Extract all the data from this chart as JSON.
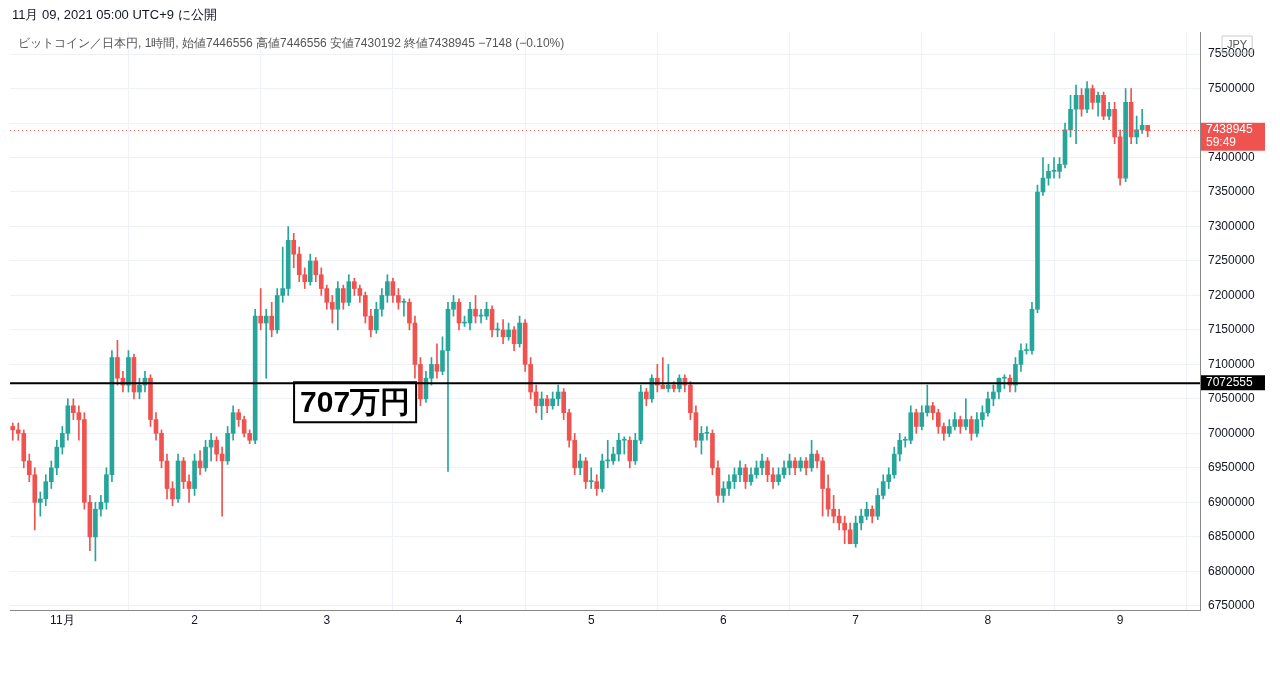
{
  "chart_data": {
    "type": "candlestick",
    "title": "11月 09, 2021 05:00 UTC+9 に公開",
    "subtitle": "ビットコイン／日本円, 1時間, 始値7446556 高値7446556 安値7430192 終値7438945 −7148 (−0.10%)",
    "ylabel": "JPY",
    "x": [
      "2021-10-31T15:00",
      "2021-10-31T16:00",
      "2021-10-31T17:00",
      "2021-10-31T18:00",
      "2021-10-31T19:00",
      "2021-10-31T20:00",
      "2021-10-31T21:00",
      "2021-10-31T22:00",
      "2021-10-31T23:00",
      "2021-11-01T00:00",
      "2021-11-01T01:00",
      "2021-11-01T02:00",
      "2021-11-01T03:00",
      "2021-11-01T04:00",
      "2021-11-01T05:00",
      "2021-11-01T06:00",
      "2021-11-01T07:00",
      "2021-11-01T08:00",
      "2021-11-01T09:00",
      "2021-11-01T10:00",
      "2021-11-01T11:00",
      "2021-11-01T12:00",
      "2021-11-01T13:00",
      "2021-11-01T14:00",
      "2021-11-01T15:00",
      "2021-11-01T16:00",
      "2021-11-01T17:00",
      "2021-11-01T18:00",
      "2021-11-01T19:00",
      "2021-11-01T20:00",
      "2021-11-01T21:00",
      "2021-11-01T22:00",
      "2021-11-01T23:00",
      "2021-11-02T00:00",
      "2021-11-02T01:00",
      "2021-11-02T02:00",
      "2021-11-02T03:00",
      "2021-11-02T04:00",
      "2021-11-02T05:00",
      "2021-11-02T06:00",
      "2021-11-02T07:00",
      "2021-11-02T08:00",
      "2021-11-02T09:00",
      "2021-11-02T10:00",
      "2021-11-02T11:00",
      "2021-11-02T12:00",
      "2021-11-02T13:00",
      "2021-11-02T14:00",
      "2021-11-02T15:00",
      "2021-11-02T16:00",
      "2021-11-02T17:00",
      "2021-11-02T18:00",
      "2021-11-02T19:00",
      "2021-11-02T20:00",
      "2021-11-02T21:00",
      "2021-11-02T22:00",
      "2021-11-02T23:00",
      "2021-11-03T00:00",
      "2021-11-03T01:00",
      "2021-11-03T02:00",
      "2021-11-03T03:00",
      "2021-11-03T04:00",
      "2021-11-03T05:00",
      "2021-11-03T06:00",
      "2021-11-03T07:00",
      "2021-11-03T08:00",
      "2021-11-03T09:00",
      "2021-11-03T10:00",
      "2021-11-03T11:00",
      "2021-11-03T12:00",
      "2021-11-03T13:00",
      "2021-11-03T14:00",
      "2021-11-03T15:00",
      "2021-11-03T16:00",
      "2021-11-03T17:00",
      "2021-11-03T18:00",
      "2021-11-03T19:00",
      "2021-11-03T20:00",
      "2021-11-03T21:00",
      "2021-11-03T22:00",
      "2021-11-03T23:00",
      "2021-11-04T00:00",
      "2021-11-04T01:00",
      "2021-11-04T02:00",
      "2021-11-04T03:00",
      "2021-11-04T04:00",
      "2021-11-04T05:00",
      "2021-11-04T06:00",
      "2021-11-04T07:00",
      "2021-11-04T08:00",
      "2021-11-04T09:00",
      "2021-11-04T10:00",
      "2021-11-04T11:00",
      "2021-11-04T12:00",
      "2021-11-04T13:00",
      "2021-11-04T14:00",
      "2021-11-04T15:00",
      "2021-11-04T16:00",
      "2021-11-04T17:00",
      "2021-11-04T18:00",
      "2021-11-04T19:00",
      "2021-11-04T20:00",
      "2021-11-04T21:00",
      "2021-11-04T22:00",
      "2021-11-04T23:00",
      "2021-11-05T00:00",
      "2021-11-05T01:00",
      "2021-11-05T02:00",
      "2021-11-05T03:00",
      "2021-11-05T04:00",
      "2021-11-05T05:00",
      "2021-11-05T06:00",
      "2021-11-05T07:00",
      "2021-11-05T08:00",
      "2021-11-05T09:00",
      "2021-11-05T10:00",
      "2021-11-05T11:00",
      "2021-11-05T12:00",
      "2021-11-05T13:00",
      "2021-11-05T14:00",
      "2021-11-05T15:00",
      "2021-11-05T16:00",
      "2021-11-05T17:00",
      "2021-11-05T18:00",
      "2021-11-05T19:00",
      "2021-11-05T20:00",
      "2021-11-05T21:00",
      "2021-11-05T22:00",
      "2021-11-05T23:00",
      "2021-11-06T00:00",
      "2021-11-06T01:00",
      "2021-11-06T02:00",
      "2021-11-06T03:00",
      "2021-11-06T04:00",
      "2021-11-06T05:00",
      "2021-11-06T06:00",
      "2021-11-06T07:00",
      "2021-11-06T08:00",
      "2021-11-06T09:00",
      "2021-11-06T10:00",
      "2021-11-06T11:00",
      "2021-11-06T12:00",
      "2021-11-06T13:00",
      "2021-11-06T14:00",
      "2021-11-06T15:00",
      "2021-11-06T16:00",
      "2021-11-06T17:00",
      "2021-11-06T18:00",
      "2021-11-06T19:00",
      "2021-11-06T20:00",
      "2021-11-06T21:00",
      "2021-11-06T22:00",
      "2021-11-06T23:00",
      "2021-11-07T00:00",
      "2021-11-07T01:00",
      "2021-11-07T02:00",
      "2021-11-07T03:00",
      "2021-11-07T04:00",
      "2021-11-07T05:00",
      "2021-11-07T06:00",
      "2021-11-07T07:00",
      "2021-11-07T08:00",
      "2021-11-07T09:00",
      "2021-11-07T10:00",
      "2021-11-07T11:00",
      "2021-11-07T12:00",
      "2021-11-07T13:00",
      "2021-11-07T14:00",
      "2021-11-07T15:00",
      "2021-11-07T16:00",
      "2021-11-07T17:00",
      "2021-11-07T18:00",
      "2021-11-07T19:00",
      "2021-11-07T20:00",
      "2021-11-07T21:00",
      "2021-11-07T22:00",
      "2021-11-07T23:00",
      "2021-11-08T00:00",
      "2021-11-08T01:00",
      "2021-11-08T02:00",
      "2021-11-08T03:00",
      "2021-11-08T04:00",
      "2021-11-08T05:00",
      "2021-11-08T06:00",
      "2021-11-08T07:00",
      "2021-11-08T08:00",
      "2021-11-08T09:00",
      "2021-11-08T10:00",
      "2021-11-08T11:00",
      "2021-11-08T12:00",
      "2021-11-08T13:00",
      "2021-11-08T14:00",
      "2021-11-08T15:00",
      "2021-11-08T16:00",
      "2021-11-08T17:00",
      "2021-11-08T18:00",
      "2021-11-08T19:00",
      "2021-11-08T20:00",
      "2021-11-08T21:00",
      "2021-11-08T22:00",
      "2021-11-08T23:00",
      "2021-11-09T00:00",
      "2021-11-09T01:00",
      "2021-11-09T02:00",
      "2021-11-09T03:00",
      "2021-11-09T04:00",
      "2021-11-09T05:00"
    ],
    "ohlc": [
      [
        7010000,
        7015000,
        6990000,
        7005000
      ],
      [
        7005000,
        7015000,
        6990000,
        7000000
      ],
      [
        7000000,
        7005000,
        6950000,
        6960000
      ],
      [
        6960000,
        6970000,
        6930000,
        6940000
      ],
      [
        6940000,
        6950000,
        6860000,
        6900000
      ],
      [
        6900000,
        6915000,
        6880000,
        6905000
      ],
      [
        6905000,
        6940000,
        6895000,
        6930000
      ],
      [
        6930000,
        6960000,
        6920000,
        6950000
      ],
      [
        6950000,
        6990000,
        6940000,
        6980000
      ],
      [
        6980000,
        7010000,
        6970000,
        7000000
      ],
      [
        7000000,
        7050000,
        6990000,
        7040000
      ],
      [
        7040000,
        7050000,
        7020000,
        7030000
      ],
      [
        7030000,
        7040000,
        6990000,
        7020000
      ],
      [
        7020000,
        7030000,
        6890000,
        6900000
      ],
      [
        6900000,
        6910000,
        6830000,
        6850000
      ],
      [
        6850000,
        6900000,
        6815000,
        6890000
      ],
      [
        6890000,
        6910000,
        6880000,
        6900000
      ],
      [
        6900000,
        6950000,
        6890000,
        6940000
      ],
      [
        6940000,
        7120000,
        6930000,
        7110000
      ],
      [
        7110000,
        7135000,
        7070000,
        7080000
      ],
      [
        7080000,
        7090000,
        7060000,
        7070000
      ],
      [
        7070000,
        7120000,
        7060000,
        7110000
      ],
      [
        7110000,
        7115000,
        7050000,
        7060000
      ],
      [
        7060000,
        7080000,
        7050000,
        7070000
      ],
      [
        7070000,
        7090000,
        7060000,
        7080000
      ],
      [
        7080000,
        7085000,
        7010000,
        7020000
      ],
      [
        7020000,
        7030000,
        6990000,
        7000000
      ],
      [
        7000000,
        7005000,
        6950000,
        6960000
      ],
      [
        6960000,
        6970000,
        6905000,
        6920000
      ],
      [
        6920000,
        6930000,
        6895000,
        6905000
      ],
      [
        6905000,
        6970000,
        6900000,
        6960000
      ],
      [
        6960000,
        6965000,
        6920000,
        6930000
      ],
      [
        6930000,
        6940000,
        6900000,
        6920000
      ],
      [
        6920000,
        6970000,
        6910000,
        6960000
      ],
      [
        6960000,
        6975000,
        6940000,
        6950000
      ],
      [
        6950000,
        6990000,
        6945000,
        6980000
      ],
      [
        6980000,
        7000000,
        6960000,
        6990000
      ],
      [
        6990000,
        6995000,
        6960000,
        6970000
      ],
      [
        6970000,
        6980000,
        6880000,
        6960000
      ],
      [
        6960000,
        7010000,
        6955000,
        7000000
      ],
      [
        7000000,
        7040000,
        6990000,
        7030000
      ],
      [
        7030000,
        7035000,
        7010000,
        7020000
      ],
      [
        7020000,
        7025000,
        6995000,
        7000000
      ],
      [
        7000000,
        7005000,
        6985000,
        6990000
      ],
      [
        6990000,
        7180000,
        6985000,
        7170000
      ],
      [
        7170000,
        7210000,
        7150000,
        7160000
      ],
      [
        7160000,
        7180000,
        7080000,
        7170000
      ],
      [
        7170000,
        7190000,
        7140000,
        7150000
      ],
      [
        7150000,
        7210000,
        7145000,
        7200000
      ],
      [
        7200000,
        7270000,
        7190000,
        7210000
      ],
      [
        7210000,
        7300000,
        7200000,
        7280000
      ],
      [
        7280000,
        7290000,
        7240000,
        7260000
      ],
      [
        7260000,
        7270000,
        7220000,
        7230000
      ],
      [
        7230000,
        7240000,
        7210000,
        7220000
      ],
      [
        7220000,
        7260000,
        7215000,
        7250000
      ],
      [
        7250000,
        7255000,
        7220000,
        7230000
      ],
      [
        7230000,
        7240000,
        7200000,
        7210000
      ],
      [
        7210000,
        7215000,
        7180000,
        7190000
      ],
      [
        7190000,
        7200000,
        7160000,
        7180000
      ],
      [
        7180000,
        7220000,
        7150000,
        7210000
      ],
      [
        7210000,
        7215000,
        7180000,
        7190000
      ],
      [
        7190000,
        7230000,
        7185000,
        7220000
      ],
      [
        7220000,
        7225000,
        7200000,
        7210000
      ],
      [
        7210000,
        7215000,
        7190000,
        7200000
      ],
      [
        7200000,
        7205000,
        7160000,
        7170000
      ],
      [
        7170000,
        7180000,
        7140000,
        7150000
      ],
      [
        7150000,
        7190000,
        7145000,
        7180000
      ],
      [
        7180000,
        7210000,
        7170000,
        7200000
      ],
      [
        7200000,
        7230000,
        7190000,
        7220000
      ],
      [
        7220000,
        7225000,
        7190000,
        7200000
      ],
      [
        7200000,
        7210000,
        7180000,
        7190000
      ],
      [
        7190000,
        7195000,
        7170000,
        7190000
      ],
      [
        7190000,
        7195000,
        7150000,
        7160000
      ],
      [
        7160000,
        7170000,
        7080000,
        7100000
      ],
      [
        7100000,
        7110000,
        7040000,
        7050000
      ],
      [
        7050000,
        7090000,
        7045000,
        7080000
      ],
      [
        7080000,
        7110000,
        7070000,
        7100000
      ],
      [
        7100000,
        7130000,
        7080000,
        7090000
      ],
      [
        7090000,
        7140000,
        7085000,
        7120000
      ],
      [
        7120000,
        7190000,
        6945000,
        7180000
      ],
      [
        7180000,
        7200000,
        7170000,
        7190000
      ],
      [
        7190000,
        7195000,
        7150000,
        7160000
      ],
      [
        7160000,
        7170000,
        7155000,
        7160000
      ],
      [
        7160000,
        7190000,
        7150000,
        7180000
      ],
      [
        7180000,
        7200000,
        7160000,
        7170000
      ],
      [
        7170000,
        7180000,
        7160000,
        7170000
      ],
      [
        7170000,
        7190000,
        7165000,
        7180000
      ],
      [
        7180000,
        7185000,
        7140000,
        7150000
      ],
      [
        7150000,
        7160000,
        7140000,
        7150000
      ],
      [
        7150000,
        7165000,
        7130000,
        7140000
      ],
      [
        7140000,
        7160000,
        7135000,
        7150000
      ],
      [
        7150000,
        7155000,
        7120000,
        7130000
      ],
      [
        7130000,
        7170000,
        7125000,
        7160000
      ],
      [
        7160000,
        7165000,
        7090000,
        7100000
      ],
      [
        7100000,
        7110000,
        7050000,
        7060000
      ],
      [
        7060000,
        7070000,
        7030000,
        7040000
      ],
      [
        7040000,
        7060000,
        7020000,
        7050000
      ],
      [
        7050000,
        7055000,
        7030000,
        7040000
      ],
      [
        7040000,
        7060000,
        7035000,
        7050000
      ],
      [
        7050000,
        7070000,
        7040000,
        7060000
      ],
      [
        7060000,
        7065000,
        7020000,
        7030000
      ],
      [
        7030000,
        7035000,
        6980000,
        6990000
      ],
      [
        6990000,
        7000000,
        6940000,
        6950000
      ],
      [
        6950000,
        6970000,
        6940000,
        6960000
      ],
      [
        6960000,
        6965000,
        6920000,
        6930000
      ],
      [
        6930000,
        6950000,
        6920000,
        6930000
      ],
      [
        6930000,
        6940000,
        6910000,
        6920000
      ],
      [
        6920000,
        6970000,
        6915000,
        6960000
      ],
      [
        6960000,
        6990000,
        6950000,
        6960000
      ],
      [
        6960000,
        6980000,
        6955000,
        6970000
      ],
      [
        6970000,
        7000000,
        6960000,
        6990000
      ],
      [
        6990000,
        6995000,
        6970000,
        6990000
      ],
      [
        6990000,
        6995000,
        6950000,
        6960000
      ],
      [
        6960000,
        7000000,
        6955000,
        6990000
      ],
      [
        6990000,
        7070000,
        6985000,
        7060000
      ],
      [
        7060000,
        7065000,
        7040000,
        7050000
      ],
      [
        7050000,
        7085000,
        7045000,
        7080000
      ],
      [
        7080000,
        7100000,
        7060000,
        7070000
      ],
      [
        7070000,
        7110000,
        7065000,
        7065000
      ],
      [
        7065000,
        7100000,
        7060000,
        7070000
      ],
      [
        7070000,
        7075000,
        7060000,
        7065000
      ],
      [
        7065000,
        7085000,
        7060000,
        7080000
      ],
      [
        7080000,
        7085000,
        7060000,
        7070000
      ],
      [
        7070000,
        7075000,
        7020000,
        7030000
      ],
      [
        7030000,
        7040000,
        6980000,
        6990000
      ],
      [
        6990000,
        7010000,
        6970000,
        7000000
      ],
      [
        7000000,
        7010000,
        6990000,
        7000000
      ],
      [
        7000000,
        7005000,
        6940000,
        6950000
      ],
      [
        6950000,
        6960000,
        6900000,
        6910000
      ],
      [
        6910000,
        6930000,
        6900000,
        6920000
      ],
      [
        6920000,
        6940000,
        6910000,
        6930000
      ],
      [
        6930000,
        6950000,
        6920000,
        6940000
      ],
      [
        6940000,
        6960000,
        6930000,
        6950000
      ],
      [
        6950000,
        6955000,
        6920000,
        6930000
      ],
      [
        6930000,
        6950000,
        6925000,
        6940000
      ],
      [
        6940000,
        6960000,
        6935000,
        6950000
      ],
      [
        6950000,
        6970000,
        6940000,
        6960000
      ],
      [
        6960000,
        6965000,
        6930000,
        6940000
      ],
      [
        6940000,
        6950000,
        6920000,
        6930000
      ],
      [
        6930000,
        6950000,
        6925000,
        6940000
      ],
      [
        6940000,
        6960000,
        6935000,
        6950000
      ],
      [
        6950000,
        6970000,
        6940000,
        6960000
      ],
      [
        6960000,
        6965000,
        6940000,
        6950000
      ],
      [
        6950000,
        6965000,
        6945000,
        6960000
      ],
      [
        6960000,
        6965000,
        6940000,
        6950000
      ],
      [
        6950000,
        6990000,
        6945000,
        6970000
      ],
      [
        6970000,
        6975000,
        6950000,
        6960000
      ],
      [
        6960000,
        6965000,
        6880000,
        6920000
      ],
      [
        6920000,
        6940000,
        6880000,
        6890000
      ],
      [
        6890000,
        6910000,
        6870000,
        6880000
      ],
      [
        6880000,
        6890000,
        6860000,
        6870000
      ],
      [
        6870000,
        6880000,
        6840000,
        6860000
      ],
      [
        6860000,
        6870000,
        6840000,
        6840000
      ],
      [
        6840000,
        6880000,
        6835000,
        6870000
      ],
      [
        6870000,
        6890000,
        6860000,
        6880000
      ],
      [
        6880000,
        6900000,
        6875000,
        6890000
      ],
      [
        6890000,
        6895000,
        6870000,
        6880000
      ],
      [
        6880000,
        6920000,
        6875000,
        6910000
      ],
      [
        6910000,
        6940000,
        6905000,
        6930000
      ],
      [
        6930000,
        6950000,
        6920000,
        6940000
      ],
      [
        6940000,
        6980000,
        6935000,
        6970000
      ],
      [
        6970000,
        7000000,
        6960000,
        6990000
      ],
      [
        6990000,
        6995000,
        6980000,
        6990000
      ],
      [
        6990000,
        7040000,
        6985000,
        7030000
      ],
      [
        7030000,
        7035000,
        7000000,
        7010000
      ],
      [
        7010000,
        7040000,
        7005000,
        7030000
      ],
      [
        7030000,
        7070000,
        7025000,
        7040000
      ],
      [
        7040000,
        7045000,
        7020000,
        7030000
      ],
      [
        7030000,
        7035000,
        7000000,
        7010000
      ],
      [
        7010000,
        7015000,
        6990000,
        7000000
      ],
      [
        7000000,
        7020000,
        6995000,
        7010000
      ],
      [
        7010000,
        7030000,
        7005000,
        7020000
      ],
      [
        7020000,
        7025000,
        7000000,
        7010000
      ],
      [
        7010000,
        7050000,
        7005000,
        7020000
      ],
      [
        7020000,
        7025000,
        6990000,
        7000000
      ],
      [
        7000000,
        7030000,
        6995000,
        7020000
      ],
      [
        7020000,
        7040000,
        7010000,
        7030000
      ],
      [
        7030000,
        7060000,
        7025000,
        7050000
      ],
      [
        7050000,
        7070000,
        7040000,
        7060000
      ],
      [
        7060000,
        7080000,
        7050000,
        7080000
      ],
      [
        7080000,
        7085000,
        7065000,
        7080000
      ],
      [
        7080000,
        7085000,
        7060000,
        7070000
      ],
      [
        7070000,
        7110000,
        7060000,
        7100000
      ],
      [
        7100000,
        7130000,
        7090000,
        7120000
      ],
      [
        7120000,
        7130000,
        7115000,
        7120000
      ],
      [
        7120000,
        7190000,
        7115000,
        7180000
      ],
      [
        7180000,
        7360000,
        7175000,
        7350000
      ],
      [
        7350000,
        7400000,
        7345000,
        7370000
      ],
      [
        7370000,
        7390000,
        7360000,
        7380000
      ],
      [
        7380000,
        7400000,
        7370000,
        7380000
      ],
      [
        7380000,
        7400000,
        7370000,
        7390000
      ],
      [
        7390000,
        7450000,
        7385000,
        7440000
      ],
      [
        7440000,
        7490000,
        7430000,
        7470000
      ],
      [
        7470000,
        7505000,
        7420000,
        7490000
      ],
      [
        7490000,
        7500000,
        7460000,
        7470000
      ],
      [
        7470000,
        7510000,
        7465000,
        7500000
      ],
      [
        7500000,
        7505000,
        7470000,
        7480000
      ],
      [
        7480000,
        7495000,
        7460000,
        7490000
      ],
      [
        7490000,
        7495000,
        7455000,
        7460000
      ],
      [
        7460000,
        7480000,
        7455000,
        7470000
      ],
      [
        7470000,
        7480000,
        7420000,
        7430000
      ],
      [
        7430000,
        7440000,
        7360000,
        7370000
      ],
      [
        7370000,
        7500000,
        7365000,
        7480000
      ],
      [
        7480000,
        7500000,
        7420000,
        7430000
      ],
      [
        7430000,
        7460000,
        7420000,
        7440000
      ],
      [
        7440000,
        7470000,
        7435000,
        7446556
      ],
      [
        7446556,
        7446556,
        7430192,
        7438945
      ]
    ],
    "xlim": [
      "2021-10-31T14:30",
      "2021-11-09T14:30"
    ],
    "xticks": [
      {
        "value": "2021-11-01",
        "label": "11月"
      },
      {
        "value": "2021-11-02",
        "label": "2"
      },
      {
        "value": "2021-11-03",
        "label": "3"
      },
      {
        "value": "2021-11-04",
        "label": "4"
      },
      {
        "value": "2021-11-05",
        "label": "5"
      },
      {
        "value": "2021-11-06",
        "label": "6"
      },
      {
        "value": "2021-11-07",
        "label": "7"
      },
      {
        "value": "2021-11-08",
        "label": "8"
      },
      {
        "value": "2021-11-09",
        "label": "9"
      }
    ],
    "ylim": [
      6743000,
      7582000
    ],
    "yticks": [
      6750000,
      6800000,
      6850000,
      6900000,
      6950000,
      7000000,
      7050000,
      7100000,
      7150000,
      7200000,
      7250000,
      7300000,
      7350000,
      7400000,
      {
        "value": 7450000,
        "label": null
      },
      7500000,
      7550000
    ],
    "grid": true,
    "legend": false,
    "ref_lines": [
      {
        "axis": "y",
        "value": 7072555,
        "label": "7072555",
        "color": "#000000",
        "line_style": "solid"
      },
      {
        "axis": "y",
        "value": 7438945,
        "label": "7438945 59:49",
        "color": "#ef5350",
        "line_style": "dotted"
      }
    ],
    "annotations": [
      "707万円"
    ]
  }
}
